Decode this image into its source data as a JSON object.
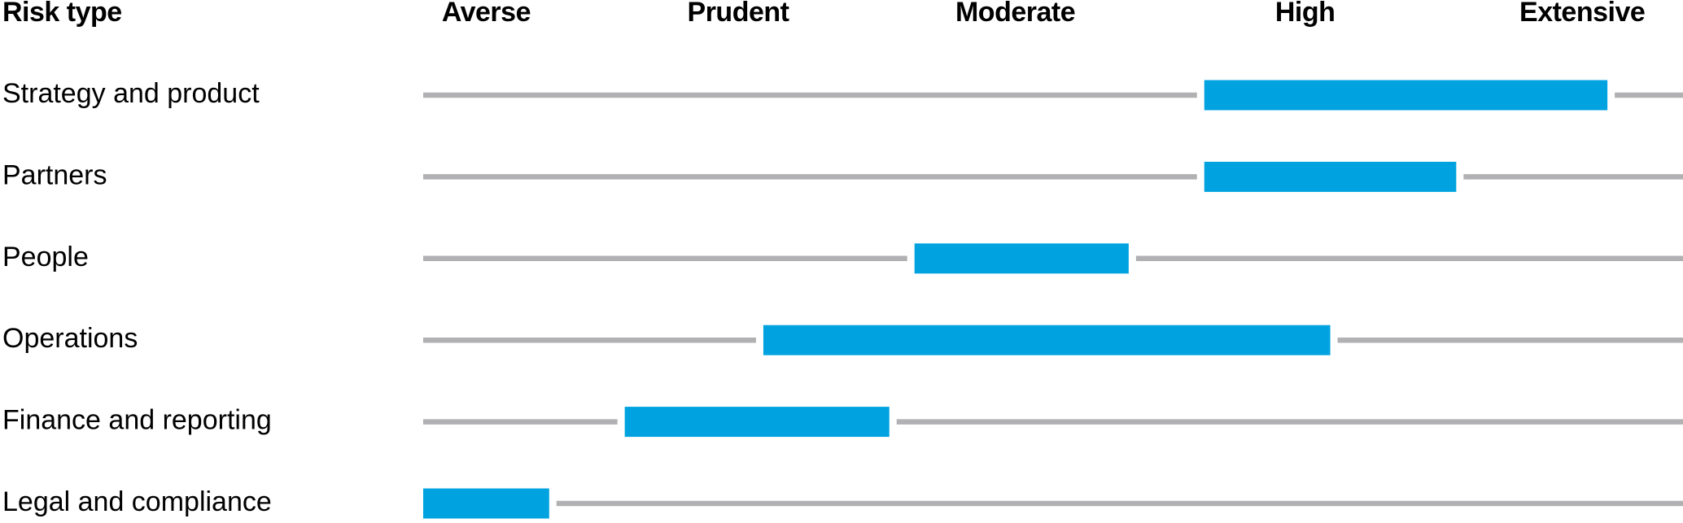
{
  "chart_data": {
    "type": "range_bar",
    "category_header": "Risk type",
    "categories": [
      "Strategy and product",
      "Partners",
      "People",
      "Operations",
      "Finance and reporting",
      "Legal and compliance"
    ],
    "values": [
      [
        62,
        94
      ],
      [
        62,
        82
      ],
      [
        39,
        56
      ],
      [
        27,
        72
      ],
      [
        16,
        37
      ],
      [
        0,
        10
      ]
    ],
    "color": "#00a3e0",
    "track_color": "#b1b1b4",
    "xlim": [
      0,
      100
    ],
    "xticks": [
      {
        "value": 5,
        "label": "Averse"
      },
      {
        "value": 25,
        "label": "Prudent"
      },
      {
        "value": 47,
        "label": "Moderate"
      },
      {
        "value": 70,
        "label": "High"
      },
      {
        "value": 92,
        "label": "Extensive"
      }
    ]
  }
}
